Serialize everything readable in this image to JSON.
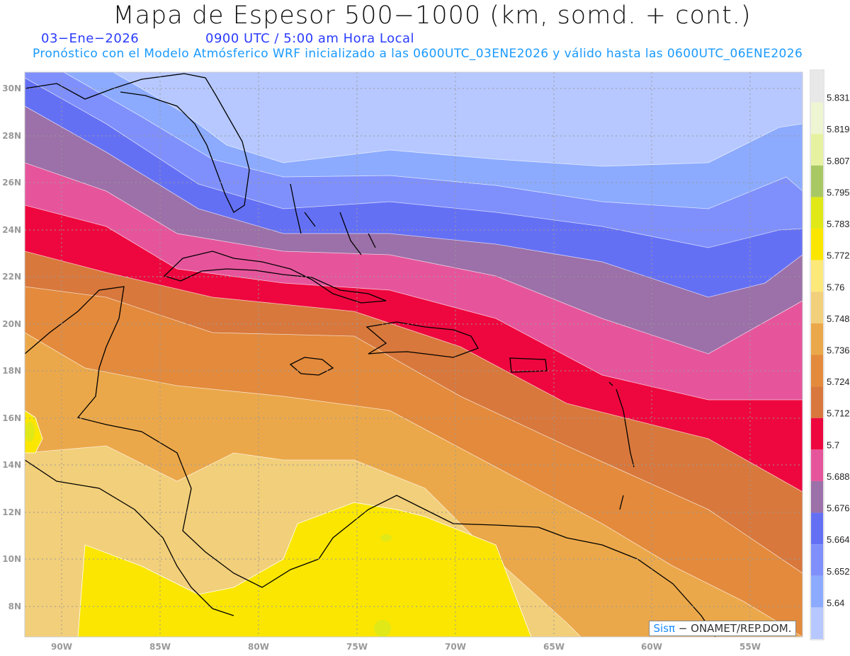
{
  "title": "Mapa de Espesor 500−1000 (km, somd. + cont.)",
  "date": "03−Ene−2026",
  "time": "0900 UTC / 5:00 am Hora Local",
  "forecast_info": "Pronóstico con el Modelo Atmósferico WRF inicializado a las 0600UTC_03ENE2026 y válido hasta las  0600UTC_06ENE2026",
  "credit": {
    "brand": "Sisπ",
    "text": "− ONAMET/REP.DOM."
  },
  "axes": {
    "lon_labels": [
      "90W",
      "85W",
      "80W",
      "75W",
      "70W",
      "65W",
      "60W",
      "55W"
    ],
    "lat_labels": [
      "30N",
      "28N",
      "26N",
      "24N",
      "22N",
      "20N",
      "18N",
      "16N",
      "14N",
      "12N",
      "10N",
      "8N"
    ]
  },
  "legend": {
    "labels": [
      "5.831",
      "5.819",
      "5.807",
      "5.795",
      "5.783",
      "5.772",
      "5.76",
      "5.748",
      "5.736",
      "5.724",
      "5.712",
      "5.7",
      "5.688",
      "5.676",
      "5.664",
      "5.652",
      "5.64"
    ],
    "colors": [
      "#e8e8e8",
      "#eef5d2",
      "#e6f2a0",
      "#a8c864",
      "#e0e818",
      "#fae600",
      "#fde87a",
      "#f2cf7a",
      "#eba84a",
      "#e38a3c",
      "#d8783c",
      "#ee073e",
      "#e6559c",
      "#9c70a8",
      "#6470f4",
      "#7f90fc",
      "#8cabff",
      "#b6c8ff"
    ]
  }
}
